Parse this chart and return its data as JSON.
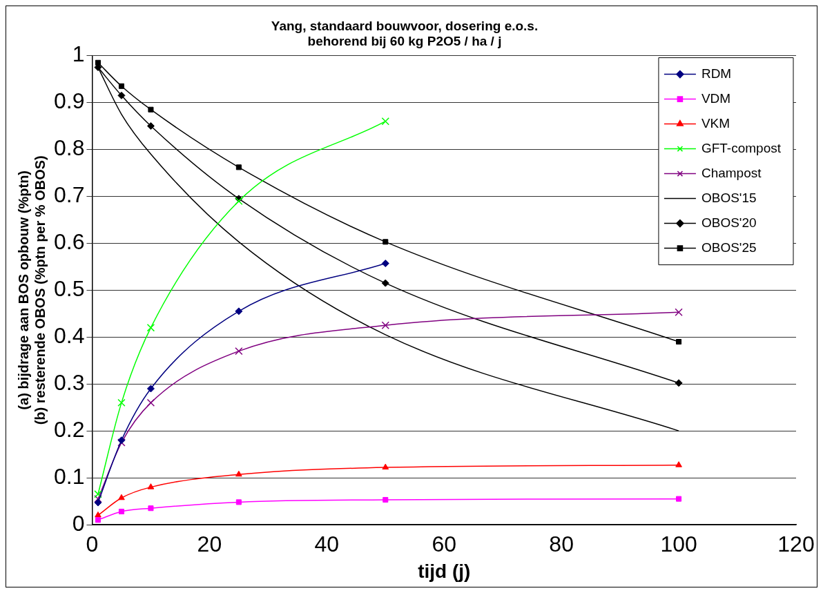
{
  "chart_data": {
    "type": "line",
    "title": "Yang, standaard bouwvoor, dosering e.o.s.\nbehorend bij 60 kg P2O5 / ha / j",
    "xlabel": "tijd (j)",
    "ylabel": "(a) bijdrage aan BOS opbouw (%ptn)\n(b) resterende OBOS (%ptn per % OBOS)",
    "x": [
      1,
      5,
      10,
      25,
      50,
      100
    ],
    "series": [
      {
        "name": "RDM",
        "color": "#000080",
        "marker": "diamond",
        "values": [
          0.047,
          0.18,
          0.29,
          0.455,
          0.557,
          null
        ]
      },
      {
        "name": "VDM",
        "color": "#ff00ff",
        "marker": "square",
        "values": [
          0.01,
          0.028,
          0.035,
          0.048,
          0.053,
          0.055
        ]
      },
      {
        "name": "VKM",
        "color": "#ff0000",
        "marker": "triangle",
        "values": [
          0.02,
          0.057,
          0.08,
          0.107,
          0.122,
          0.127
        ]
      },
      {
        "name": "GFT-compost",
        "color": "#00ff00",
        "marker": "cross",
        "values": [
          0.065,
          0.26,
          0.42,
          0.69,
          0.86,
          null
        ]
      },
      {
        "name": "Champost",
        "color": "#800080",
        "marker": "cross",
        "values": [
          0.055,
          0.175,
          0.26,
          0.37,
          0.425,
          0.453
        ]
      },
      {
        "name": "OBOS'15",
        "color": "#000000",
        "values": [
          0.975,
          0.875,
          0.79,
          0.603,
          0.405,
          0.2
        ]
      },
      {
        "name": "OBOS'20",
        "color": "#000000",
        "marker": "diamond",
        "values": [
          0.975,
          0.915,
          0.85,
          0.695,
          0.515,
          0.302
        ]
      },
      {
        "name": "OBOS'25",
        "color": "#000000",
        "marker": "square",
        "values": [
          0.985,
          0.935,
          0.885,
          0.762,
          0.603,
          0.39
        ]
      }
    ],
    "xlim": [
      0,
      120
    ],
    "xticks": [
      0,
      20,
      40,
      60,
      80,
      100,
      120
    ],
    "ylim": [
      0,
      1
    ],
    "yticks": [
      0,
      0.1,
      0.2,
      0.3,
      0.4,
      0.5,
      0.6,
      0.7,
      0.8,
      0.9,
      1
    ],
    "grid": "y",
    "legend": "top right"
  }
}
